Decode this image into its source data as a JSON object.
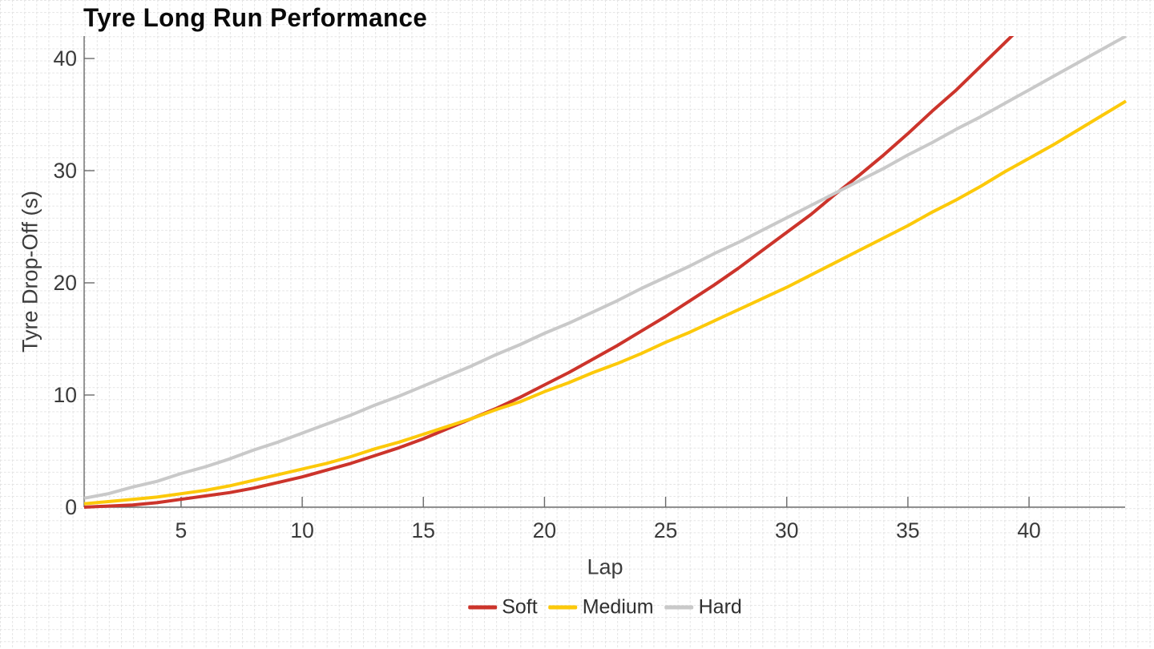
{
  "chart_data": {
    "type": "line",
    "title": "Tyre Long Run Performance",
    "xlabel": "Lap",
    "ylabel": "Tyre Drop-Off (s)",
    "xlim": [
      1,
      44
    ],
    "ylim": [
      0,
      42
    ],
    "x_ticks": [
      5,
      10,
      15,
      20,
      25,
      30,
      35,
      40
    ],
    "y_ticks": [
      0,
      10,
      20,
      30,
      40
    ],
    "grid": "fine dashed graph-paper grid across the entire image, ~15px cells",
    "legend_position": "bottom-center",
    "axes": "left and bottom spines only, inward tick marks, soft line clipped at top of plot",
    "series": [
      {
        "name": "Soft",
        "color": "#cc342b",
        "x_start": 1,
        "x_step": 1,
        "values": [
          0.0,
          0.1,
          0.2,
          0.4,
          0.7,
          1.0,
          1.3,
          1.7,
          2.2,
          2.7,
          3.3,
          3.9,
          4.6,
          5.3,
          6.1,
          7.0,
          7.9,
          8.8,
          9.8,
          10.9,
          12.0,
          13.2,
          14.4,
          15.7,
          17.0,
          18.4,
          19.8,
          21.3,
          22.9,
          24.5,
          26.1,
          27.9,
          29.6,
          31.4,
          33.3,
          35.3,
          37.2,
          39.3,
          41.4,
          43.5
        ]
      },
      {
        "name": "Medium",
        "color": "#fcc90a",
        "x_start": 1,
        "x_step": 1,
        "values": [
          0.3,
          0.5,
          0.7,
          0.9,
          1.2,
          1.5,
          1.9,
          2.4,
          2.9,
          3.4,
          3.9,
          4.5,
          5.2,
          5.8,
          6.5,
          7.2,
          7.9,
          8.7,
          9.4,
          10.3,
          11.1,
          12.0,
          12.8,
          13.7,
          14.7,
          15.6,
          16.6,
          17.6,
          18.6,
          19.6,
          20.7,
          21.8,
          22.9,
          24.0,
          25.1,
          26.3,
          27.4,
          28.6,
          29.9,
          31.1,
          32.3,
          33.6,
          34.9,
          36.2
        ]
      },
      {
        "name": "Hard",
        "color": "#c9c9c9",
        "x_start": 1,
        "x_step": 1,
        "values": [
          0.8,
          1.2,
          1.8,
          2.3,
          3.0,
          3.6,
          4.3,
          5.1,
          5.8,
          6.6,
          7.4,
          8.2,
          9.1,
          9.9,
          10.8,
          11.7,
          12.6,
          13.6,
          14.5,
          15.5,
          16.4,
          17.4,
          18.4,
          19.5,
          20.5,
          21.5,
          22.6,
          23.6,
          24.7,
          25.8,
          26.9,
          28.0,
          29.1,
          30.2,
          31.4,
          32.5,
          33.7,
          34.8,
          36.0,
          37.2,
          38.4,
          39.6,
          40.8,
          42.0
        ]
      }
    ],
    "annotations": {
      "soft_medium_crossover_lap": 17,
      "soft_hard_crossover_lap": 33
    }
  },
  "colors": {
    "background": "#ffffff",
    "grid_line": "#e2e2e2",
    "axis_spine": "#6b6b6b",
    "tick_label": "#3a3a3a",
    "title_text": "#0a0a0a"
  }
}
